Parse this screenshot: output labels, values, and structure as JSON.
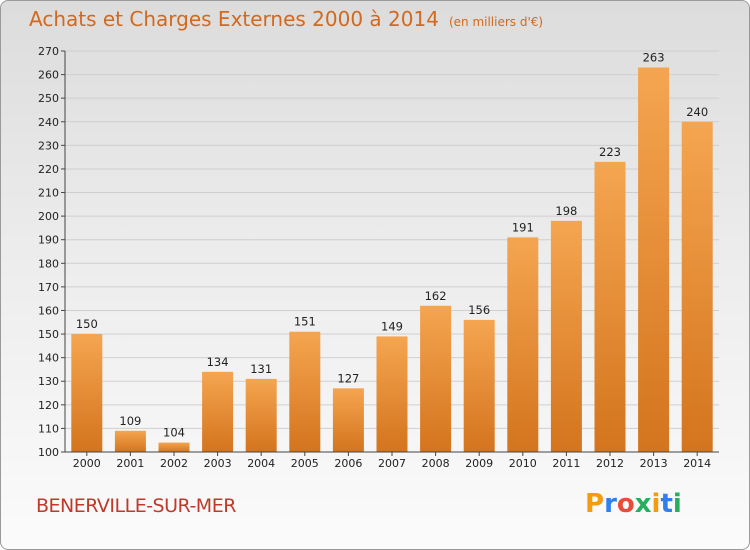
{
  "header": {
    "title": "Achats et Charges Externes 2000 à 2014",
    "subtitle": "(en milliers d'€)"
  },
  "footer": {
    "town": "BENERVILLE-SUR-MER",
    "logo_letters": [
      "P",
      "r",
      "o",
      "x",
      "i",
      "t",
      "i"
    ],
    "logo_colors": [
      "#f39c12",
      "#2f80ed",
      "#e74c3c",
      "#27ae60",
      "#f39c12",
      "#2f80ed",
      "#27ae60"
    ]
  },
  "chart_data": {
    "type": "bar",
    "title": "Achats et Charges Externes 2000 à 2014",
    "subtitle": "(en milliers d'€)",
    "xlabel": "",
    "ylabel": "",
    "categories": [
      "2000",
      "2001",
      "2002",
      "2003",
      "2004",
      "2005",
      "2006",
      "2007",
      "2008",
      "2009",
      "2010",
      "2011",
      "2012",
      "2013",
      "2014"
    ],
    "values": [
      150,
      109,
      104,
      134,
      131,
      151,
      127,
      149,
      162,
      156,
      191,
      198,
      223,
      263,
      240
    ],
    "ylim": [
      100,
      270
    ],
    "yticks": [
      100,
      110,
      120,
      130,
      140,
      150,
      160,
      170,
      180,
      190,
      200,
      210,
      220,
      230,
      240,
      250,
      260,
      270
    ],
    "grid": true,
    "bar_color_light": "#f5a550",
    "bar_color_dark": "#d4741e"
  }
}
